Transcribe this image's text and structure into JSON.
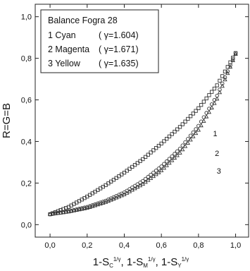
{
  "chart_data": {
    "type": "scatter",
    "xlabel": "1-S_C^{1/γ}, 1-S_M^{1/γ}, 1-S_Y^{1/γ}",
    "xlabel_parts": {
      "prefix": "1-S",
      "sep": ", ",
      "subs": [
        "C",
        "M",
        "Y"
      ],
      "sup": "1/γ"
    },
    "ylabel": "R=G=B",
    "xlim": [
      -0.08,
      1.07
    ],
    "ylim": [
      -0.06,
      1.06
    ],
    "x_ticks": [
      "0,0",
      "0,2",
      "0,4",
      "0,6",
      "0,8",
      "1,0"
    ],
    "y_ticks": [
      "0,0",
      "0,2",
      "0,4",
      "0,6",
      "0,8",
      "1,0"
    ],
    "x_tick_values": [
      0,
      0.2,
      0.4,
      0.6,
      0.8,
      1.0
    ],
    "y_tick_values": [
      0,
      0.2,
      0.4,
      0.6,
      0.8,
      1.0
    ],
    "grid": false,
    "legend_position": "top-left",
    "legend": {
      "title": "Balance Fogra 28",
      "entries": [
        {
          "label": "1 Cyan",
          "gamma": "( γ=1.604)"
        },
        {
          "label": "2 Magenta",
          "gamma": "( γ=1.671)"
        },
        {
          "label": "3 Yellow",
          "gamma": "( γ=1.635)"
        }
      ]
    },
    "series": [
      {
        "marker": "open-square",
        "label": "1",
        "points": [
          [
            0.0,
            0.05
          ],
          [
            0.1,
            0.085
          ],
          [
            0.2,
            0.135
          ],
          [
            0.3,
            0.19
          ],
          [
            0.4,
            0.25
          ],
          [
            0.5,
            0.315
          ],
          [
            0.6,
            0.39
          ],
          [
            0.7,
            0.47
          ],
          [
            0.8,
            0.56
          ],
          [
            0.9,
            0.67
          ],
          [
            1.0,
            0.825
          ]
        ]
      },
      {
        "marker": "open-circle",
        "label": "2",
        "points": [
          [
            0.0,
            0.05
          ],
          [
            0.1,
            0.065
          ],
          [
            0.2,
            0.085
          ],
          [
            0.3,
            0.115
          ],
          [
            0.4,
            0.155
          ],
          [
            0.5,
            0.21
          ],
          [
            0.6,
            0.28
          ],
          [
            0.7,
            0.365
          ],
          [
            0.8,
            0.475
          ],
          [
            0.9,
            0.62
          ],
          [
            1.0,
            0.825
          ]
        ]
      },
      {
        "marker": "open-triangle",
        "label": "3",
        "points": [
          [
            0.0,
            0.05
          ],
          [
            0.1,
            0.062
          ],
          [
            0.2,
            0.08
          ],
          [
            0.3,
            0.108
          ],
          [
            0.4,
            0.145
          ],
          [
            0.5,
            0.195
          ],
          [
            0.6,
            0.26
          ],
          [
            0.7,
            0.345
          ],
          [
            0.8,
            0.455
          ],
          [
            0.9,
            0.605
          ],
          [
            1.0,
            0.82
          ]
        ]
      }
    ],
    "curve_labels": [
      {
        "text": "1",
        "x": 0.89,
        "y": 0.425
      },
      {
        "text": "2",
        "x": 0.9,
        "y": 0.33
      },
      {
        "text": "3",
        "x": 0.91,
        "y": 0.245
      }
    ]
  }
}
